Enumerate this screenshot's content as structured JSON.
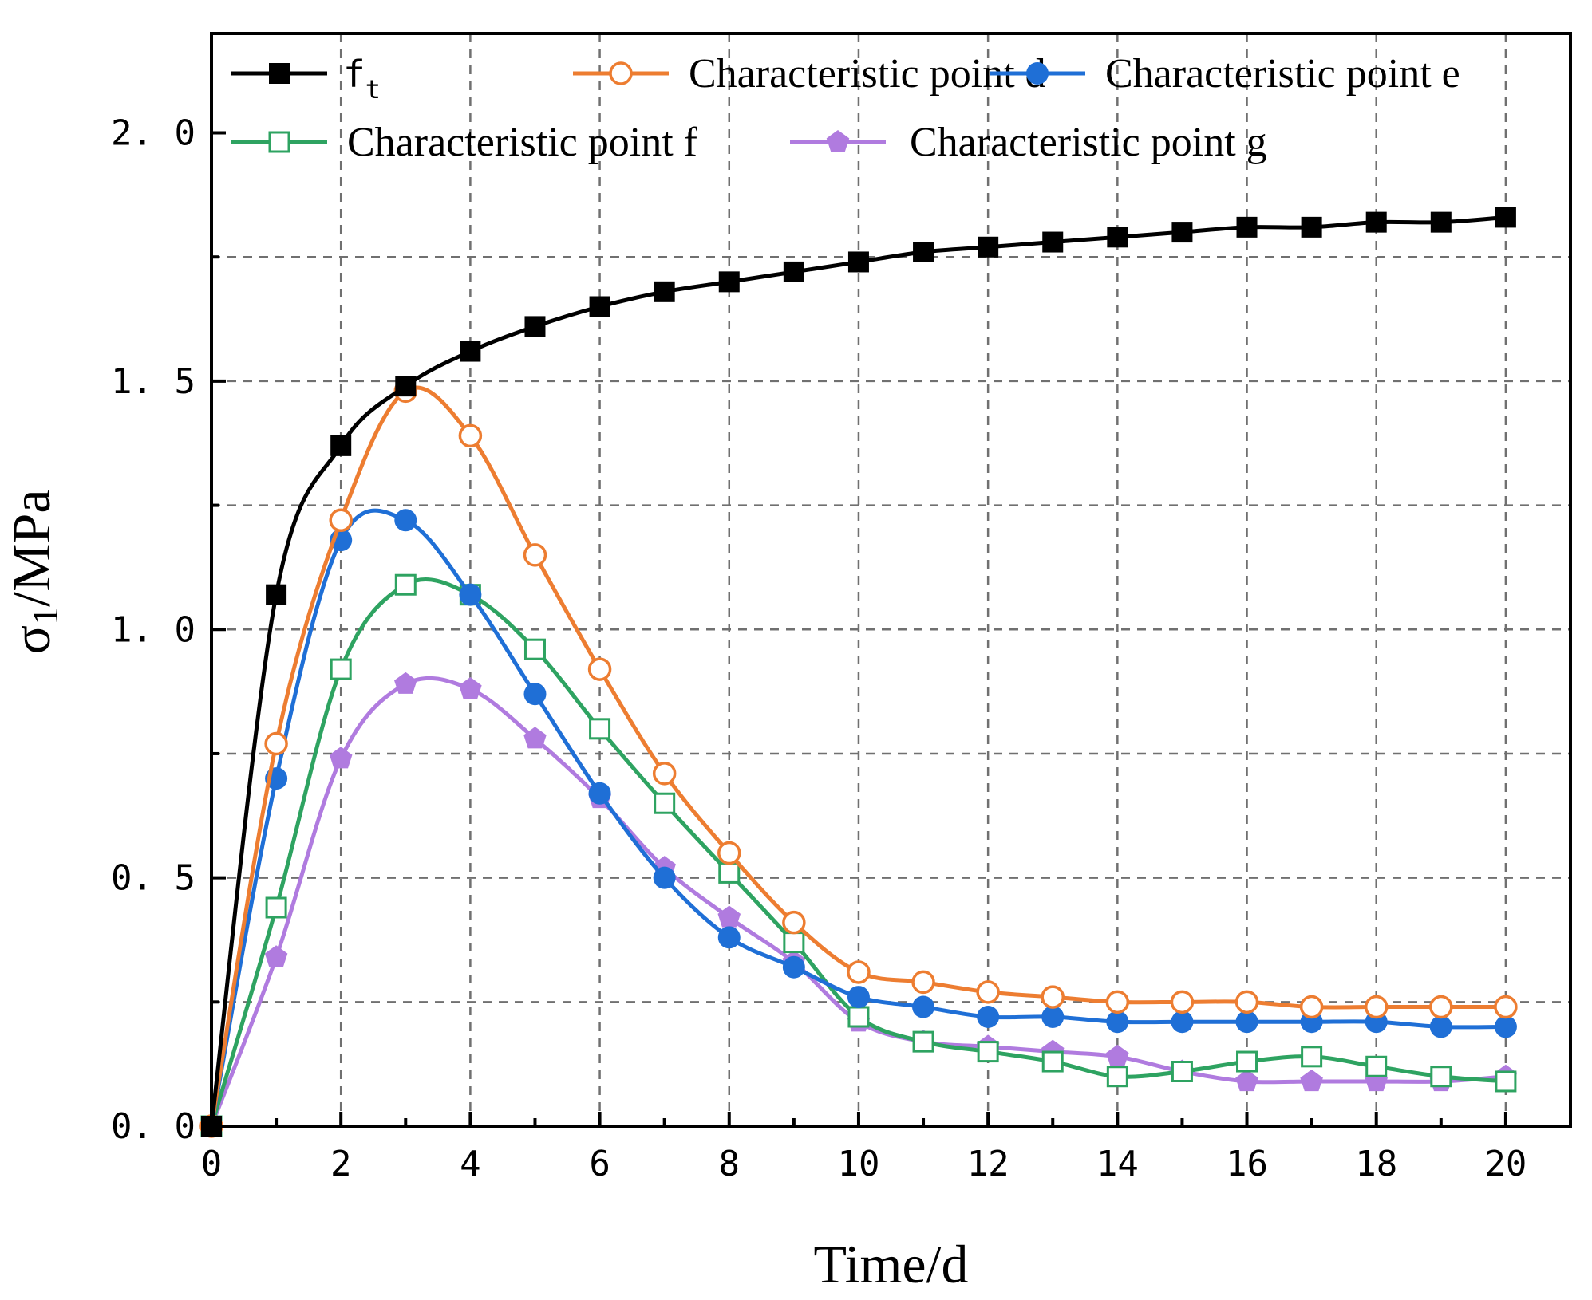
{
  "chart_data": {
    "type": "line",
    "xlabel": "Time/d",
    "ylabel_main": "σ",
    "ylabel_sub": "1",
    "ylabel_unit": "/MPa",
    "xlim": [
      0,
      21
    ],
    "ylim": [
      0,
      2.2
    ],
    "xticks": [
      "0",
      "2",
      "4",
      "6",
      "8",
      "10",
      "12",
      "14",
      "16",
      "18",
      "20"
    ],
    "yticks": [
      "0. 0",
      "0. 5",
      "1. 0",
      "1. 5",
      "2. 0"
    ],
    "grid": true,
    "legend_position": "top",
    "x": [
      0,
      1,
      2,
      3,
      4,
      5,
      6,
      7,
      8,
      9,
      10,
      11,
      12,
      13,
      14,
      15,
      16,
      17,
      18,
      19,
      20
    ],
    "series": [
      {
        "name": "f",
        "name_sub": "t",
        "color": "#000000",
        "marker": "square-filled",
        "values": [
          0.0,
          1.07,
          1.37,
          1.49,
          1.56,
          1.61,
          1.65,
          1.68,
          1.7,
          1.72,
          1.74,
          1.76,
          1.77,
          1.78,
          1.79,
          1.8,
          1.81,
          1.81,
          1.82,
          1.82,
          1.83
        ]
      },
      {
        "name": "Characteristic point d",
        "color": "#ED7D31",
        "marker": "circle-open",
        "values": [
          0.0,
          0.77,
          1.22,
          1.48,
          1.39,
          1.15,
          0.92,
          0.71,
          0.55,
          0.41,
          0.31,
          0.29,
          0.27,
          0.26,
          0.25,
          0.25,
          0.25,
          0.24,
          0.24,
          0.24,
          0.24
        ]
      },
      {
        "name": "Characteristic point e",
        "color": "#1F6FD6",
        "marker": "circle-filled",
        "values": [
          0.0,
          0.7,
          1.18,
          1.22,
          1.07,
          0.87,
          0.67,
          0.5,
          0.38,
          0.32,
          0.26,
          0.24,
          0.22,
          0.22,
          0.21,
          0.21,
          0.21,
          0.21,
          0.21,
          0.2,
          0.2
        ]
      },
      {
        "name": "Characteristic point f",
        "color": "#2EA361",
        "marker": "square-open",
        "values": [
          0.0,
          0.44,
          0.92,
          1.09,
          1.07,
          0.96,
          0.8,
          0.65,
          0.51,
          0.37,
          0.22,
          0.17,
          0.15,
          0.13,
          0.1,
          0.11,
          0.13,
          0.14,
          0.12,
          0.1,
          0.09
        ]
      },
      {
        "name": "Characteristic point g",
        "color": "#B07BDF",
        "marker": "pentagon-filled",
        "values": [
          0.0,
          0.34,
          0.74,
          0.89,
          0.88,
          0.78,
          0.66,
          0.52,
          0.42,
          0.33,
          0.21,
          0.17,
          0.16,
          0.15,
          0.14,
          0.11,
          0.09,
          0.09,
          0.09,
          0.09,
          0.1
        ]
      }
    ]
  }
}
